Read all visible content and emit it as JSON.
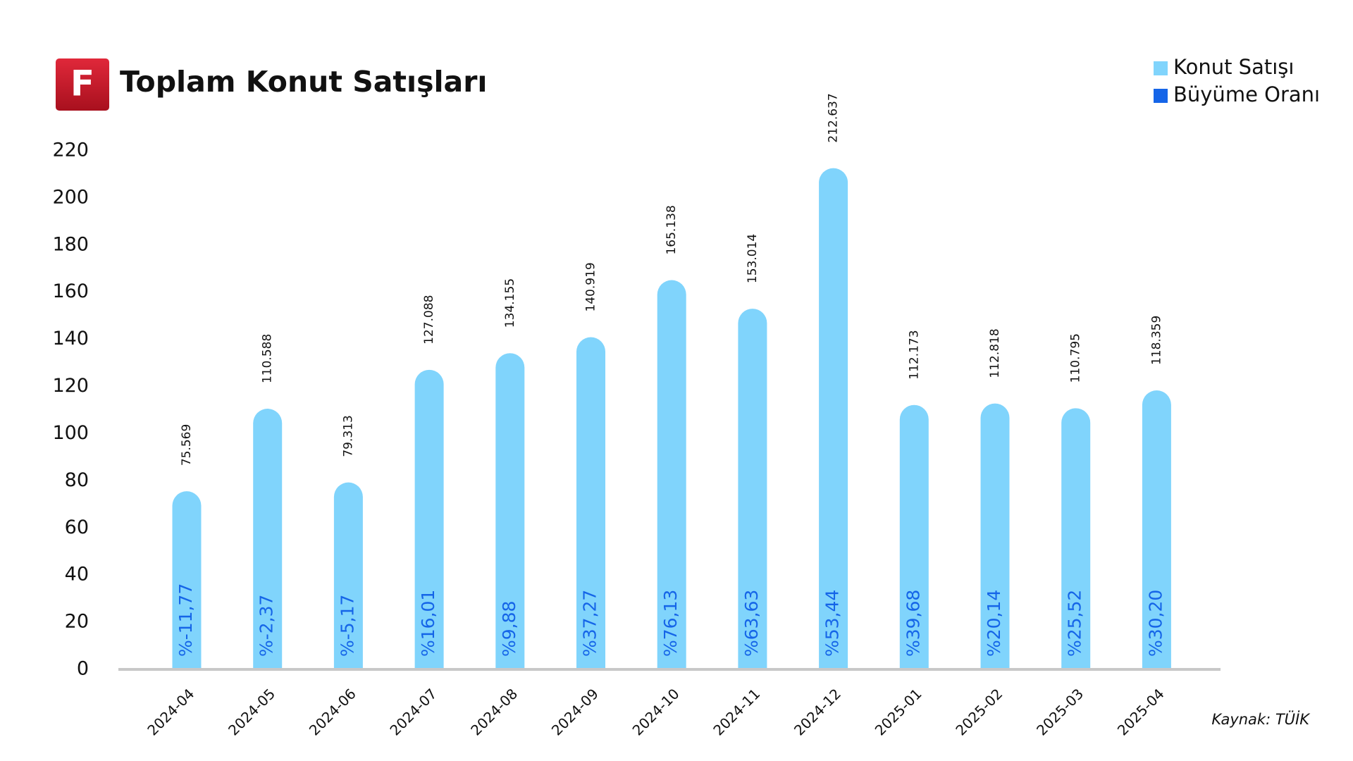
{
  "logo": "F",
  "chart_data": {
    "type": "bar",
    "title": "Toplam Konut Satışları",
    "source": "Kaynak: TÜİK",
    "categories": [
      "2024-04",
      "2024-05",
      "2024-06",
      "2024-07",
      "2024-08",
      "2024-09",
      "2024-10",
      "2024-11",
      "2024-12",
      "2025-01",
      "2025-02",
      "2025-03",
      "2025-04"
    ],
    "series": [
      {
        "name": "Konut Satışı",
        "color": "#80d4fc",
        "values": [
          75.569,
          110.588,
          79.313,
          127.088,
          134.155,
          140.919,
          165.138,
          153.014,
          212.637,
          112.173,
          112.818,
          110.795,
          118.359
        ]
      },
      {
        "name": "Büyüme Oranı",
        "color": "#1565e8",
        "values": [
          -11.77,
          -2.37,
          -5.17,
          16.01,
          9.88,
          37.27,
          76.13,
          63.63,
          53.44,
          39.68,
          20.14,
          25.52,
          30.2
        ],
        "value_labels": [
          "%-11,77",
          "%-2,37",
          "%-5,17",
          "%16,01",
          "%9,88",
          "%37,27",
          "%76,13",
          "%63,63",
          "%53,44",
          "%39,68",
          "%20,14",
          "%25,52",
          "%30,20"
        ]
      }
    ],
    "ylim": [
      0,
      220
    ],
    "yticks": [
      0,
      20,
      40,
      60,
      80,
      100,
      120,
      140,
      160,
      180,
      200,
      220
    ]
  }
}
